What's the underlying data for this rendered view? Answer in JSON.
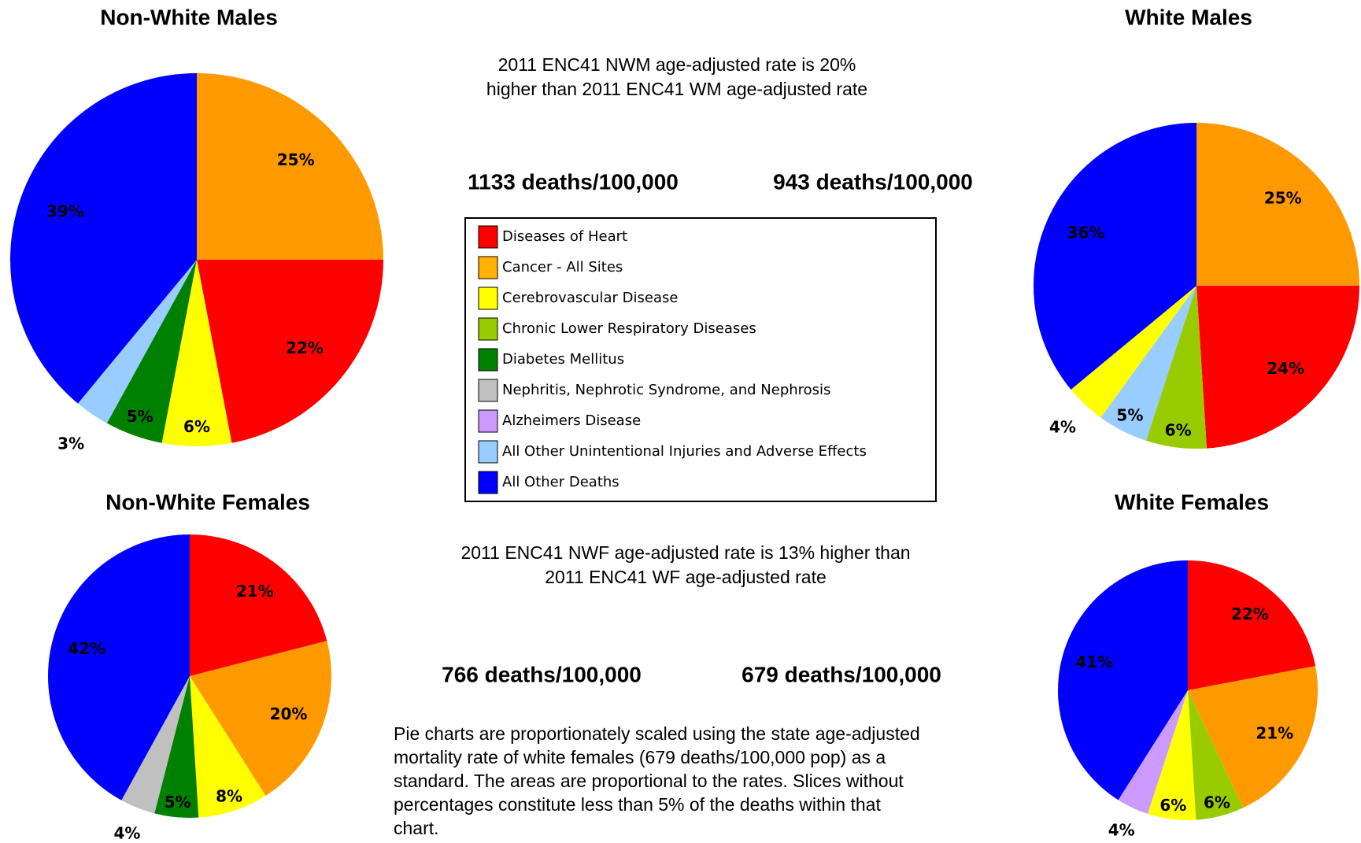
{
  "chart_data": [
    {
      "type": "pie",
      "title": "Non-White Males",
      "subtitle": "1133 deaths/100,000",
      "values": [
        25,
        22,
        6,
        5,
        3,
        39
      ],
      "value_labels": [
        "25%",
        "22%",
        "6%",
        "5%",
        "3%",
        "39%"
      ],
      "colors": [
        "#ff9900",
        "#ff0000",
        "#ffff00",
        "#008000",
        "#99ccff",
        "#0000ff"
      ]
    },
    {
      "type": "pie",
      "title": "White Males",
      "subtitle": "943 deaths/100,000",
      "values": [
        25,
        24,
        6,
        5,
        4,
        36
      ],
      "value_labels": [
        "25%",
        "24%",
        "6%",
        "5%",
        "4%",
        "36%"
      ],
      "colors": [
        "#ff9900",
        "#ff0000",
        "#99cc00",
        "#99ccff",
        "#ffff00",
        "#0000ff"
      ]
    },
    {
      "type": "pie",
      "title": "Non-White Females",
      "subtitle": "766 deaths/100,000",
      "values": [
        21,
        20,
        8,
        5,
        4,
        42
      ],
      "value_labels": [
        "21%",
        "20%",
        "8%",
        "5%",
        "4%",
        "42%"
      ],
      "colors": [
        "#ff0000",
        "#ff9900",
        "#ffff00",
        "#008000",
        "#c0c0c0",
        "#0000ff"
      ]
    },
    {
      "type": "pie",
      "title": "White Females",
      "subtitle": "679 deaths/100,000",
      "values": [
        22,
        21,
        6,
        6,
        4,
        41
      ],
      "value_labels": [
        "22%",
        "21%",
        "6%",
        "6%",
        "4%",
        "41%"
      ],
      "colors": [
        "#ff0000",
        "#ff9900",
        "#99cc00",
        "#ffff00",
        "#cc99ff",
        "#0000ff"
      ]
    }
  ],
  "comparisons": [
    [
      "2011 ENC41 NWM age-adjusted rate is 20%",
      "higher than 2011 ENC41 WM age-adjusted rate"
    ],
    [
      "2011 ENC41 NWF age-adjusted rate is 13% higher than",
      "2011 ENC41 WF age-adjusted rate"
    ]
  ],
  "legend": [
    {
      "name": "Diseases of Heart",
      "color": "#ff0000"
    },
    {
      "name": "Cancer - All Sites",
      "color": "#ffb000"
    },
    {
      "name": "Cerebrovascular Disease",
      "color": "#ffff00"
    },
    {
      "name": "Chronic Lower Respiratory Diseases",
      "color": "#99cc00"
    },
    {
      "name": "Diabetes Mellitus",
      "color": "#008000"
    },
    {
      "name": "Nephritis, Nephrotic Syndrome, and Nephrosis",
      "color": "#c0c0c0"
    },
    {
      "name": "Alzheimers Disease",
      "color": "#cc99ff"
    },
    {
      "name": "All Other Unintentional Injuries and Adverse Effects",
      "color": "#99ccff"
    },
    {
      "name": "All Other Deaths",
      "color": "#0000ff"
    }
  ],
  "footnote": [
    "Pie charts are proportionately scaled using the state age-adjusted",
    "mortality rate of white females (679 deaths/100,000 pop) as a",
    "standard.  The areas are proportional to the rates.  Slices without",
    "percentages constitute less than 5% of the deaths within that",
    "chart."
  ]
}
